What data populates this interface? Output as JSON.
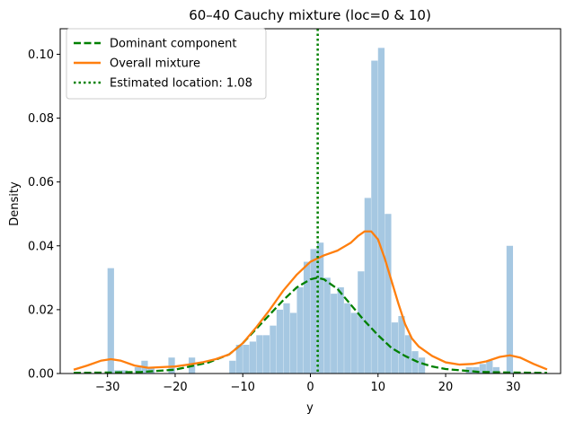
{
  "chart_data": {
    "type": "histogram+line",
    "title": "60–40 Cauchy mixture (loc=0 & 10)",
    "xlabel": "y",
    "ylabel": "Density",
    "xlim": [
      -37,
      37
    ],
    "ylim": [
      0,
      0.108
    ],
    "x_ticks": [
      -30,
      -20,
      -10,
      0,
      10,
      20,
      30
    ],
    "x_tick_labels": [
      "−30",
      "−20",
      "−10",
      "0",
      "10",
      "20",
      "30"
    ],
    "y_ticks": [
      0,
      0.02,
      0.04,
      0.06,
      0.08,
      0.1
    ],
    "y_tick_labels": [
      "0.00",
      "0.02",
      "0.04",
      "0.06",
      "0.08",
      "0.10"
    ],
    "histogram": {
      "name": "Samples",
      "color": "#a6c8e2",
      "bin_width": 1,
      "bins": [
        {
          "x0": -30,
          "value": 0.033
        },
        {
          "x0": -29,
          "value": 0.001
        },
        {
          "x0": -28,
          "value": 0.001
        },
        {
          "x0": -26,
          "value": 0.002
        },
        {
          "x0": -25,
          "value": 0.004
        },
        {
          "x0": -24,
          "value": 0.002
        },
        {
          "x0": -21,
          "value": 0.005
        },
        {
          "x0": -18,
          "value": 0.005
        },
        {
          "x0": -12,
          "value": 0.004
        },
        {
          "x0": -11,
          "value": 0.009
        },
        {
          "x0": -10,
          "value": 0.009
        },
        {
          "x0": -9,
          "value": 0.01
        },
        {
          "x0": -8,
          "value": 0.012
        },
        {
          "x0": -7,
          "value": 0.012
        },
        {
          "x0": -6,
          "value": 0.015
        },
        {
          "x0": -5,
          "value": 0.02
        },
        {
          "x0": -4,
          "value": 0.022
        },
        {
          "x0": -3,
          "value": 0.019
        },
        {
          "x0": -2,
          "value": 0.027
        },
        {
          "x0": -1,
          "value": 0.035
        },
        {
          "x0": 0,
          "value": 0.039
        },
        {
          "x0": 1,
          "value": 0.041
        },
        {
          "x0": 2,
          "value": 0.03
        },
        {
          "x0": 3,
          "value": 0.025
        },
        {
          "x0": 4,
          "value": 0.027
        },
        {
          "x0": 5,
          "value": 0.022
        },
        {
          "x0": 6,
          "value": 0.019
        },
        {
          "x0": 7,
          "value": 0.032
        },
        {
          "x0": 8,
          "value": 0.055
        },
        {
          "x0": 9,
          "value": 0.098
        },
        {
          "x0": 10,
          "value": 0.102
        },
        {
          "x0": 11,
          "value": 0.05
        },
        {
          "x0": 12,
          "value": 0.016
        },
        {
          "x0": 13,
          "value": 0.018
        },
        {
          "x0": 14,
          "value": 0.012
        },
        {
          "x0": 15,
          "value": 0.007
        },
        {
          "x0": 16,
          "value": 0.005
        },
        {
          "x0": 23,
          "value": 0.002
        },
        {
          "x0": 24,
          "value": 0.002
        },
        {
          "x0": 25,
          "value": 0.003
        },
        {
          "x0": 26,
          "value": 0.004
        },
        {
          "x0": 27,
          "value": 0.002
        },
        {
          "x0": 29,
          "value": 0.04
        }
      ]
    },
    "series": [
      {
        "name": "Dominant component",
        "style": "dashed",
        "color": "#008000",
        "x": [
          -35,
          -30,
          -25,
          -20,
          -15,
          -12,
          -10,
          -8,
          -6,
          -4,
          -2,
          0,
          1,
          2,
          4,
          6,
          8,
          10,
          12,
          14,
          16,
          18,
          20,
          25,
          30,
          35
        ],
        "y": [
          0.0002,
          0.0003,
          0.0005,
          0.0012,
          0.0035,
          0.006,
          0.0095,
          0.014,
          0.0185,
          0.023,
          0.027,
          0.0295,
          0.03,
          0.0295,
          0.0265,
          0.0215,
          0.0165,
          0.012,
          0.008,
          0.0055,
          0.0035,
          0.0022,
          0.0014,
          0.0005,
          0.0003,
          0.0002
        ]
      },
      {
        "name": "Overall mixture",
        "style": "solid",
        "color": "#ff7f0e",
        "x": [
          -35,
          -33,
          -31,
          -29.5,
          -28,
          -26,
          -24,
          -22,
          -20,
          -18,
          -16,
          -14,
          -12,
          -10,
          -8,
          -6,
          -4,
          -2,
          0,
          2,
          4,
          6,
          7,
          8,
          9,
          10,
          11,
          12,
          13,
          14,
          15,
          16,
          18,
          20,
          22,
          24,
          26,
          28,
          29.5,
          31,
          33,
          35
        ],
        "y": [
          0.0012,
          0.0025,
          0.004,
          0.0045,
          0.004,
          0.0025,
          0.0018,
          0.002,
          0.0022,
          0.0028,
          0.0035,
          0.0045,
          0.006,
          0.0095,
          0.0145,
          0.02,
          0.026,
          0.031,
          0.035,
          0.037,
          0.0385,
          0.041,
          0.043,
          0.0445,
          0.0445,
          0.042,
          0.036,
          0.029,
          0.022,
          0.0155,
          0.011,
          0.0085,
          0.0055,
          0.0035,
          0.0028,
          0.003,
          0.0038,
          0.0052,
          0.0057,
          0.005,
          0.003,
          0.0013
        ]
      },
      {
        "name": "Estimated location: 1.08",
        "style": "dotted",
        "color": "#008000",
        "vline_x": 1.08
      }
    ],
    "legend": {
      "position": "top-left",
      "entries": [
        "Dominant component",
        "Overall mixture",
        "Estimated location: 1.08"
      ]
    },
    "grid": false
  }
}
